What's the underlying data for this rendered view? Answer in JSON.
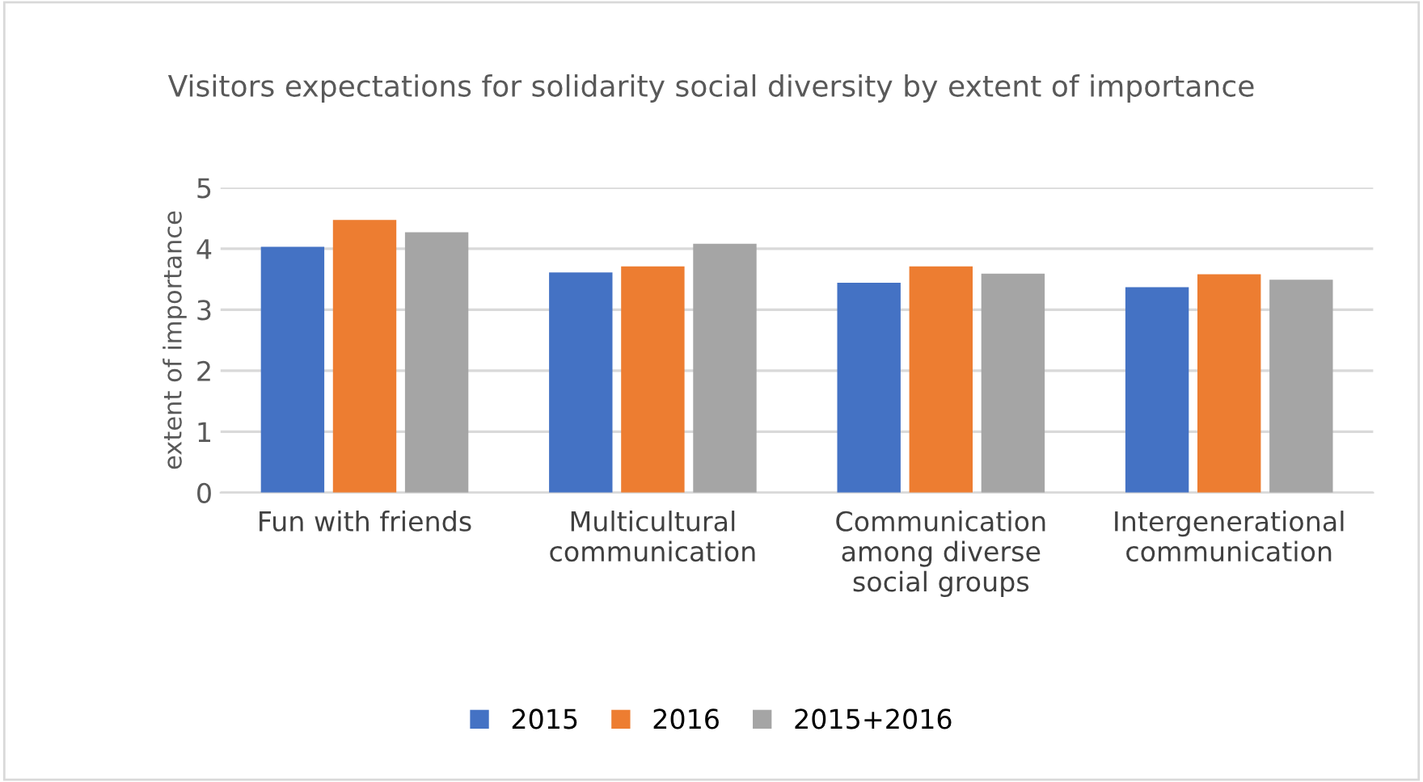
{
  "chart_data": {
    "type": "bar",
    "title": "Visitors expectations for solidarity social diversity by extent of importance",
    "ylabel": "extent of importance",
    "categories": [
      "Fun with friends",
      "Multicultural\ncommunication",
      "Communication\namong diverse\nsocial groups",
      "Intergenerational\ncommunication"
    ],
    "series": [
      {
        "name": "2015",
        "color": "#4472c4",
        "values": [
          4.03,
          3.61,
          3.44,
          3.37
        ]
      },
      {
        "name": "2016",
        "color": "#ed7d31",
        "values": [
          4.47,
          3.71,
          3.71,
          3.58
        ]
      },
      {
        "name": "2015+2016",
        "color": "#a5a5a5",
        "values": [
          4.27,
          4.08,
          3.59,
          3.49
        ]
      }
    ],
    "ylim": [
      0,
      5
    ],
    "yticks": [
      0,
      1,
      2,
      3,
      4,
      5
    ],
    "grid": "y",
    "legend": "bottom"
  }
}
